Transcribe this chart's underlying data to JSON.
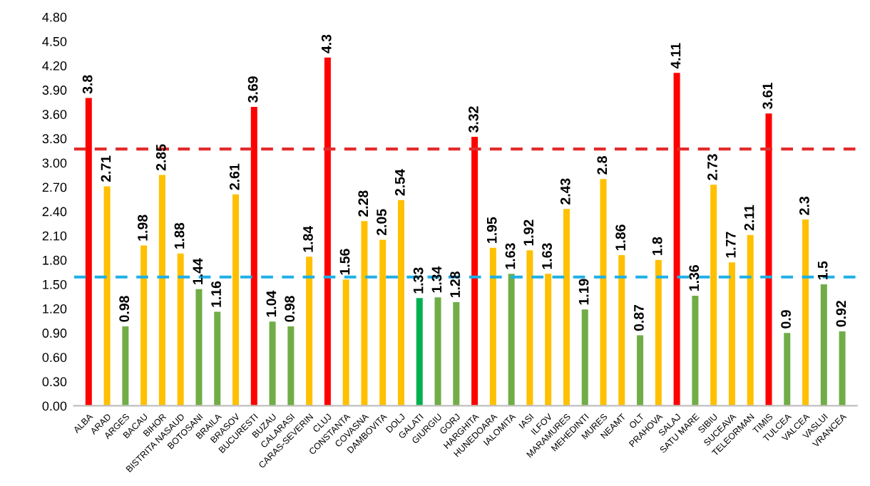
{
  "chart_data": {
    "type": "bar",
    "categories": [
      "ALBA",
      "ARAD",
      "ARGES",
      "BACAU",
      "BIHOR",
      "BISTRITA NASAUD",
      "BOTOSANI",
      "BRAILA",
      "BRASOV",
      "BUCURESTI",
      "BUZAU",
      "CALARASI",
      "CARAS-SEVERIN",
      "CLUJ",
      "CONSTANTA",
      "COVASNA",
      "DAMBOVITA",
      "DOLJ",
      "GALATI",
      "GIURGIU",
      "GORJ",
      "HARGHITA",
      "HUNEDOARA",
      "IALOMITA",
      "IASI",
      "ILFOV",
      "MARAMURES",
      "MEHEDINTI",
      "MURES",
      "NEAMT",
      "OLT",
      "PRAHOVA",
      "SALAJ",
      "SATU MARE",
      "SIBIU",
      "SUCEAVA",
      "TELEORMAN",
      "TIMIS",
      "TULCEA",
      "VALCEA",
      "VASLUI",
      "VRANCEA"
    ],
    "values": [
      3.8,
      2.71,
      0.98,
      1.98,
      2.85,
      1.88,
      1.44,
      1.16,
      2.61,
      3.69,
      1.04,
      0.98,
      1.84,
      4.3,
      1.56,
      2.28,
      2.05,
      2.54,
      1.33,
      1.34,
      1.28,
      3.32,
      1.95,
      1.63,
      1.92,
      1.63,
      2.43,
      1.19,
      2.8,
      1.86,
      0.87,
      1.8,
      4.11,
      1.36,
      2.73,
      1.77,
      2.11,
      3.61,
      0.9,
      2.3,
      1.5,
      0.92
    ],
    "colors": [
      "#ff0000",
      "#ffc000",
      "#70ad47",
      "#ffc000",
      "#ffc000",
      "#ffc000",
      "#70ad47",
      "#70ad47",
      "#ffc000",
      "#ff0000",
      "#70ad47",
      "#70ad47",
      "#ffc000",
      "#ff0000",
      "#ffc000",
      "#ffc000",
      "#ffc000",
      "#ffc000",
      "#00b050",
      "#70ad47",
      "#70ad47",
      "#ff0000",
      "#ffc000",
      "#70ad47",
      "#ffc000",
      "#ffc000",
      "#ffc000",
      "#70ad47",
      "#ffc000",
      "#ffc000",
      "#70ad47",
      "#ffc000",
      "#ff0000",
      "#70ad47",
      "#ffc000",
      "#ffc000",
      "#ffc000",
      "#ff0000",
      "#70ad47",
      "#ffc000",
      "#70ad47",
      "#70ad47"
    ],
    "ylim": [
      0,
      4.8
    ],
    "yticks": [
      {
        "value": 0,
        "label": "0.00"
      },
      {
        "value": 0.3,
        "label": "0.30"
      },
      {
        "value": 0.6,
        "label": "0.60"
      },
      {
        "value": 0.9,
        "label": "0.90"
      },
      {
        "value": 1.2,
        "label": "1.20"
      },
      {
        "value": 1.5,
        "label": "1.50"
      },
      {
        "value": 1.8,
        "label": "1.80"
      },
      {
        "value": 2.1,
        "label": "2.10"
      },
      {
        "value": 2.4,
        "label": "2.40"
      },
      {
        "value": 2.7,
        "label": "2.70"
      },
      {
        "value": 3.0,
        "label": "3.00"
      },
      {
        "value": 3.3,
        "label": "3.30"
      },
      {
        "value": 3.6,
        "label": "3.60"
      },
      {
        "value": 3.9,
        "label": "3.90"
      },
      {
        "value": 4.2,
        "label": "4.20"
      },
      {
        "value": 4.5,
        "label": "4.50"
      },
      {
        "value": 4.8,
        "label": "4.80"
      }
    ],
    "ref_lines": [
      {
        "axis": "y",
        "value": 3.17,
        "color": "#e32b2b",
        "line_style": "dashed"
      },
      {
        "axis": "y",
        "value": 1.59,
        "color": "#1fb0e6",
        "line_style": "dashed"
      }
    ],
    "data_labels": true,
    "grid": false,
    "legend": false
  }
}
